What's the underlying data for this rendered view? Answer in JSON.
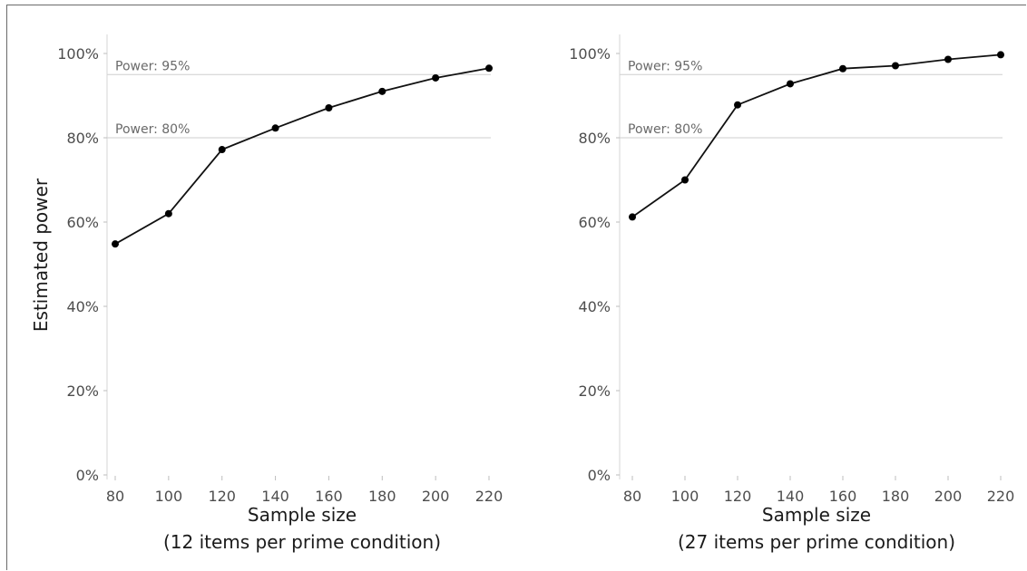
{
  "chart_data": [
    {
      "type": "line",
      "title": "",
      "xlabel": "Sample size",
      "xlabel_sub": "(12 items per prime condition)",
      "ylabel": "Estimated power",
      "xlim": [
        80,
        220
      ],
      "ylim": [
        0,
        100
      ],
      "x_ticks": [
        80,
        100,
        120,
        140,
        160,
        180,
        200,
        220
      ],
      "y_ticks": [
        0,
        20,
        40,
        60,
        80,
        100
      ],
      "y_tick_labels": [
        "0%",
        "20%",
        "40%",
        "60%",
        "80%",
        "100%"
      ],
      "grid": false,
      "legend": false,
      "reference_lines": [
        {
          "value": 95,
          "label": "Power: 95%"
        },
        {
          "value": 80,
          "label": "Power: 80%"
        }
      ],
      "series": [
        {
          "x": [
            80,
            100,
            120,
            140,
            160,
            180,
            200,
            220
          ],
          "values": [
            54.8,
            62.0,
            77.2,
            82.3,
            87.1,
            91.0,
            94.2,
            96.5
          ]
        }
      ],
      "color": "#000000"
    },
    {
      "type": "line",
      "title": "",
      "xlabel": "Sample size",
      "xlabel_sub": "(27 items per prime condition)",
      "ylabel": "",
      "xlim": [
        80,
        220
      ],
      "ylim": [
        0,
        100
      ],
      "x_ticks": [
        80,
        100,
        120,
        140,
        160,
        180,
        200,
        220
      ],
      "y_ticks": [
        0,
        20,
        40,
        60,
        80,
        100
      ],
      "y_tick_labels": [
        "0%",
        "20%",
        "40%",
        "60%",
        "80%",
        "100%"
      ],
      "grid": false,
      "legend": false,
      "reference_lines": [
        {
          "value": 95,
          "label": "Power: 95%"
        },
        {
          "value": 80,
          "label": "Power: 80%"
        }
      ],
      "series": [
        {
          "x": [
            80,
            100,
            120,
            140,
            160,
            180,
            200,
            220
          ],
          "values": [
            61.2,
            70.0,
            87.8,
            92.8,
            96.4,
            97.1,
            98.6,
            99.7
          ]
        }
      ],
      "color": "#000000"
    }
  ]
}
